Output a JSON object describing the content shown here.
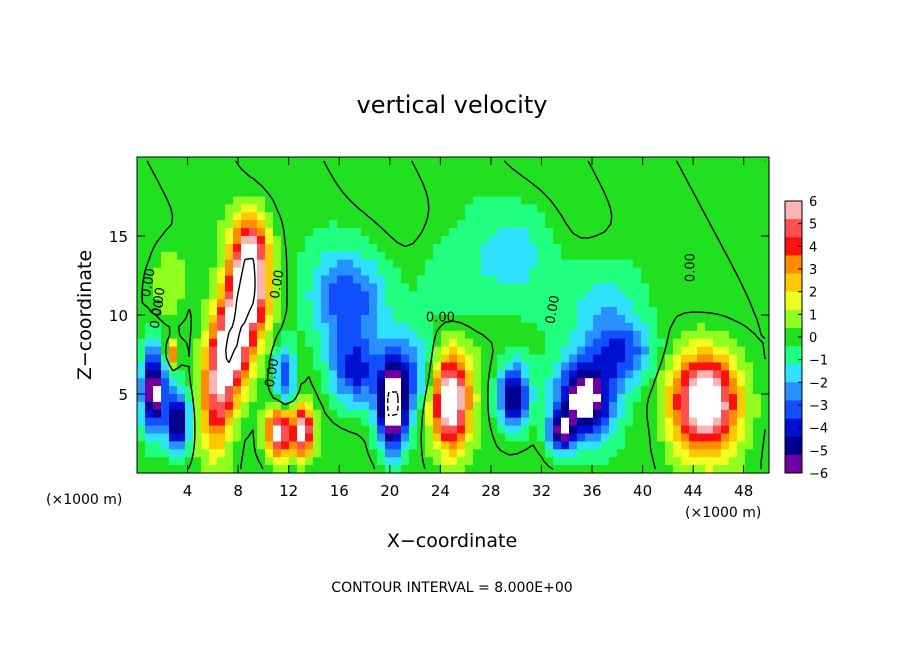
{
  "chart_data": {
    "type": "heatmap",
    "title": "vertical velocity",
    "xlabel": "X−coordinate",
    "ylabel": "Z−coordinate",
    "x_unit_left": "(×1000 m)",
    "x_unit_right": "(×1000 m)",
    "footer": "CONTOUR INTERVAL = 8.000E+00",
    "xlim": [
      0,
      50
    ],
    "ylim": [
      0,
      20
    ],
    "x_ticks": [
      "4",
      "8",
      "12",
      "16",
      "20",
      "24",
      "28",
      "32",
      "36",
      "40",
      "44",
      "48"
    ],
    "y_ticks": [
      "5",
      "10",
      "15"
    ],
    "contour_labels": [
      "0.00",
      "0.00",
      "0.00",
      "0.00",
      "0.00",
      "0.00",
      "0.00",
      "0.00"
    ],
    "colorbar": {
      "labels": [
        "6",
        "5",
        "4",
        "3",
        "2",
        "1",
        "0",
        "−1",
        "−2",
        "−3",
        "−4",
        "−5",
        "−6"
      ],
      "colors": [
        "#fbb4b4",
        "#ff5050",
        "#ff1010",
        "#ff8c00",
        "#ffc800",
        "#f0ff20",
        "#90ff20",
        "#20e020",
        "#20ff80",
        "#30e0ff",
        "#2890ff",
        "#1050ff",
        "#0010d0",
        "#000090",
        "#7000a0"
      ]
    },
    "features": [
      {
        "x": 1.3,
        "z": 5.2,
        "sx": 1.0,
        "sz": 2.6,
        "amp": -7
      },
      {
        "x": 3.2,
        "z": 3.2,
        "sx": 0.9,
        "sz": 2.0,
        "amp": -6
      },
      {
        "x": 2.5,
        "z": 12.0,
        "sx": 1.3,
        "sz": 2.2,
        "amp": 1.5
      },
      {
        "x": 6.3,
        "z": 4.8,
        "sx": 1.3,
        "sz": 3.5,
        "amp": 5
      },
      {
        "x": 7.5,
        "z": 8.0,
        "sx": 1.5,
        "sz": 3.0,
        "amp": 7
      },
      {
        "x": 8.8,
        "z": 11.6,
        "sx": 1.5,
        "sz": 2.8,
        "amp": 8
      },
      {
        "x": 9.0,
        "z": 14.5,
        "sx": 1.3,
        "sz": 2.0,
        "amp": 4
      },
      {
        "x": 11.7,
        "z": 6.2,
        "sx": 0.8,
        "sz": 2.0,
        "amp": -4
      },
      {
        "x": 11.2,
        "z": 2.5,
        "sx": 1.0,
        "sz": 1.6,
        "amp": 7
      },
      {
        "x": 13.1,
        "z": 2.6,
        "sx": 0.8,
        "sz": 1.5,
        "amp": 7
      },
      {
        "x": 16.6,
        "z": 11.0,
        "sx": 3.0,
        "sz": 3.0,
        "amp": -3.5
      },
      {
        "x": 17.2,
        "z": 6.4,
        "sx": 2.0,
        "sz": 2.2,
        "amp": -4
      },
      {
        "x": 21.5,
        "z": 6.5,
        "sx": 2.0,
        "sz": 2.5,
        "amp": -3
      },
      {
        "x": 20.2,
        "z": 4.0,
        "sx": 1.1,
        "sz": 2.5,
        "amp": -8
      },
      {
        "x": 24.8,
        "z": 4.5,
        "sx": 1.5,
        "sz": 3.0,
        "amp": 8
      },
      {
        "x": 29.8,
        "z": 4.8,
        "sx": 1.2,
        "sz": 2.0,
        "amp": -6
      },
      {
        "x": 33.5,
        "z": 2.5,
        "sx": 1.0,
        "sz": 1.2,
        "amp": -5
      },
      {
        "x": 35.4,
        "z": 4.6,
        "sx": 2.2,
        "sz": 2.4,
        "amp": -7
      },
      {
        "x": 38.5,
        "z": 7.5,
        "sx": 2.5,
        "sz": 2.0,
        "amp": -3.5
      },
      {
        "x": 37.0,
        "z": 10.5,
        "sx": 3.0,
        "sz": 3.0,
        "amp": -2
      },
      {
        "x": 25.0,
        "z": 12.0,
        "sx": 3.0,
        "sz": 3.0,
        "amp": -1.2
      },
      {
        "x": 30.0,
        "z": 14.0,
        "sx": 3.0,
        "sz": 3.0,
        "amp": -1.5
      },
      {
        "x": 45.0,
        "z": 4.5,
        "sx": 2.6,
        "sz": 3.0,
        "amp": 8
      },
      {
        "x": 2.8,
        "z": 7.5,
        "sx": 0.5,
        "sz": 0.8,
        "amp": 4
      },
      {
        "x": 41.0,
        "z": 3.5,
        "sx": 1.0,
        "sz": 2.0,
        "amp": -0.5
      }
    ]
  }
}
